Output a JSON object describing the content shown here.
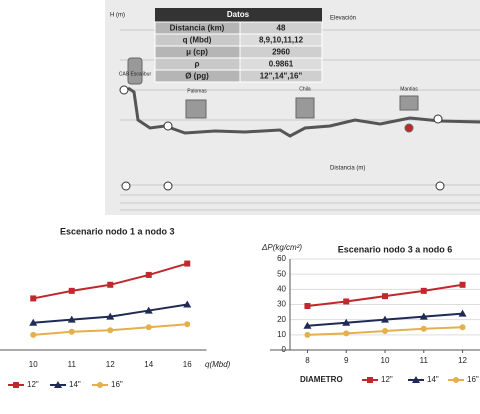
{
  "diagram": {
    "h_label": "H (m)",
    "elev_label": "Elevación",
    "x_label": "Distancia (m)",
    "origin": "CAB Escalibur",
    "stations": [
      "Palomas",
      "Chila",
      "Mantias"
    ],
    "table": {
      "title": "Datos",
      "rows": [
        [
          "Distancia (km)",
          "48"
        ],
        [
          "q (Mbd)",
          "8,9,10,11,12"
        ],
        [
          "μ (cp)",
          "2960"
        ],
        [
          "ρ",
          "0.9861"
        ],
        [
          "Ø (pg)",
          "12\",14\",16\""
        ]
      ]
    }
  },
  "chart_data": [
    {
      "type": "line",
      "title": "Escenario nodo 1 a nodo 3",
      "x_label": "q(Mbd)",
      "categories": [
        "10",
        "11",
        "12",
        "14",
        "16"
      ],
      "ylim": [
        0,
        60
      ],
      "series": [
        {
          "name": "12\"",
          "color": "#c0282d",
          "marker": "square",
          "values": [
            34,
            39,
            43,
            49.5,
            57
          ]
        },
        {
          "name": "14\"",
          "color": "#1f2a55",
          "marker": "triangle",
          "values": [
            18,
            20,
            22,
            26,
            30
          ]
        },
        {
          "name": "16\"",
          "color": "#e3b04b",
          "marker": "circle",
          "values": [
            10,
            12,
            13,
            15,
            17
          ]
        }
      ]
    },
    {
      "type": "line",
      "title": "Escenario nodo 3 a nodo 6",
      "y_label": "ΔP(kg/cm²)",
      "legend_title": "DIAMETRO",
      "x": [
        8,
        9,
        10,
        11,
        12
      ],
      "xlim": [
        7.55,
        12.45
      ],
      "xticks": [
        8,
        9,
        10,
        11,
        12
      ],
      "ylim": [
        0,
        60
      ],
      "yticks": [
        0,
        10,
        20,
        30,
        40,
        50,
        60
      ],
      "series": [
        {
          "name": "12\"",
          "color": "#c0282d",
          "marker": "square",
          "values": [
            29,
            32,
            35.5,
            39,
            43
          ]
        },
        {
          "name": "14\"",
          "color": "#1f2a55",
          "marker": "triangle",
          "values": [
            16,
            18,
            20,
            22,
            24
          ]
        },
        {
          "name": "16\"",
          "color": "#e3b04b",
          "marker": "circle",
          "values": [
            10,
            11,
            12.5,
            14,
            15
          ]
        }
      ]
    }
  ]
}
